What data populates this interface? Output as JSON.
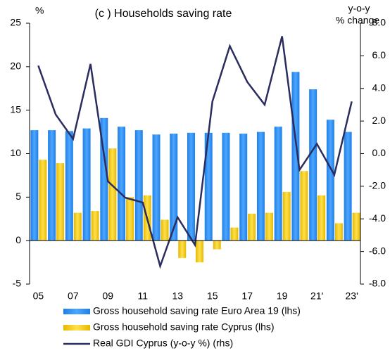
{
  "chart_data": {
    "type": "bar",
    "title": "(c ) Households saving rate",
    "ylabel": "%",
    "y2label": [
      "y-o-y",
      "% change"
    ],
    "categories": [
      "05",
      null,
      "07",
      null,
      "09",
      null,
      "11",
      null,
      "13",
      null,
      "15",
      null,
      "17",
      null,
      "19",
      null,
      "21'",
      null,
      "23'"
    ],
    "series": [
      {
        "name": "Gross household saving rate Euro Area 19 (lhs)",
        "color": "#3399ff",
        "type": "bar",
        "values": [
          12.7,
          12.7,
          12.6,
          12.9,
          14.1,
          13.1,
          12.7,
          12.2,
          12.3,
          12.4,
          12.4,
          12.4,
          12.3,
          12.5,
          13.1,
          19.4,
          17.4,
          13.9,
          12.5
        ]
      },
      {
        "name": "Gross household saving rate Cyprus (lhs)",
        "color": "#ffcc00",
        "type": "bar",
        "values": [
          9.3,
          8.9,
          3.2,
          3.4,
          10.6,
          5.0,
          5.2,
          2.4,
          -2.0,
          -2.5,
          -1.0,
          1.5,
          3.1,
          3.2,
          5.6,
          8.0,
          5.2,
          2.0,
          3.2
        ]
      },
      {
        "name": "Real GDI Cyprus (y-o-y %) (rhs)",
        "color": "#2b2d5e",
        "type": "line",
        "axis": "y2",
        "values": [
          5.4,
          2.4,
          0.9,
          5.5,
          -1.7,
          -2.7,
          -3.0,
          -6.9,
          -3.9,
          -5.6,
          3.2,
          6.6,
          4.4,
          3.0,
          7.2,
          -1.0,
          0.6,
          -1.3,
          3.2
        ]
      }
    ],
    "ylim": [
      -5,
      25
    ],
    "yticks": [
      -5,
      0,
      5,
      10,
      15,
      20,
      25
    ],
    "y2lim": [
      -8,
      8
    ],
    "y2ticks": [
      {
        "value": -8,
        "label": "-8.0"
      },
      {
        "value": -6,
        "label": "-6.0"
      },
      {
        "value": -4,
        "label": "-4.0"
      },
      {
        "value": -2,
        "label": "-2.0"
      },
      {
        "value": 0,
        "label": "0.0"
      },
      {
        "value": 2,
        "label": "2.0"
      },
      {
        "value": 4,
        "label": "4.0"
      },
      {
        "value": 6,
        "label": "6.0"
      },
      {
        "value": 8,
        "label": "8.0"
      }
    ],
    "legend": "bottom"
  }
}
